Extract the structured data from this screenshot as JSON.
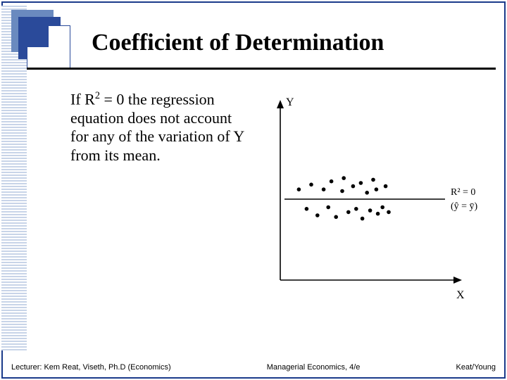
{
  "title": "Coefficient of Determination",
  "body_html": "If R<sup>2</sup> = 0 the regression equation does not account for any of the variation of Y from its mean.",
  "footer": {
    "left": "Lecturer: Kem Reat, Viseth, Ph.D (Economics)",
    "center": "Managerial Economics, 4/e",
    "right": "Keat/Young"
  },
  "chart": {
    "type": "scatter",
    "y_axis_label": "Y",
    "x_axis_label": "X",
    "annotation_r2": "R² = 0",
    "annotation_yhat": "(ŷ = ȳ)",
    "background_color": "#ffffff",
    "axis_color": "#000000",
    "point_color": "#000000",
    "line_color": "#000000",
    "hline_y": 0.5,
    "points": [
      {
        "x": 0.12,
        "y": 0.56
      },
      {
        "x": 0.17,
        "y": 0.44
      },
      {
        "x": 0.2,
        "y": 0.59
      },
      {
        "x": 0.24,
        "y": 0.4
      },
      {
        "x": 0.28,
        "y": 0.56
      },
      {
        "x": 0.31,
        "y": 0.45
      },
      {
        "x": 0.33,
        "y": 0.61
      },
      {
        "x": 0.36,
        "y": 0.39
      },
      {
        "x": 0.4,
        "y": 0.55
      },
      {
        "x": 0.41,
        "y": 0.63
      },
      {
        "x": 0.44,
        "y": 0.42
      },
      {
        "x": 0.47,
        "y": 0.58
      },
      {
        "x": 0.49,
        "y": 0.44
      },
      {
        "x": 0.52,
        "y": 0.6
      },
      {
        "x": 0.53,
        "y": 0.38
      },
      {
        "x": 0.56,
        "y": 0.54
      },
      {
        "x": 0.58,
        "y": 0.43
      },
      {
        "x": 0.6,
        "y": 0.62
      },
      {
        "x": 0.62,
        "y": 0.56
      },
      {
        "x": 0.63,
        "y": 0.41
      },
      {
        "x": 0.66,
        "y": 0.45
      },
      {
        "x": 0.68,
        "y": 0.58
      },
      {
        "x": 0.7,
        "y": 0.42
      }
    ]
  },
  "colors": {
    "frame_border": "#1a3a8a",
    "stripe_light": "#c8d4e8",
    "logo_back": "#6a8abf",
    "logo_mid": "#2a4a9a"
  }
}
